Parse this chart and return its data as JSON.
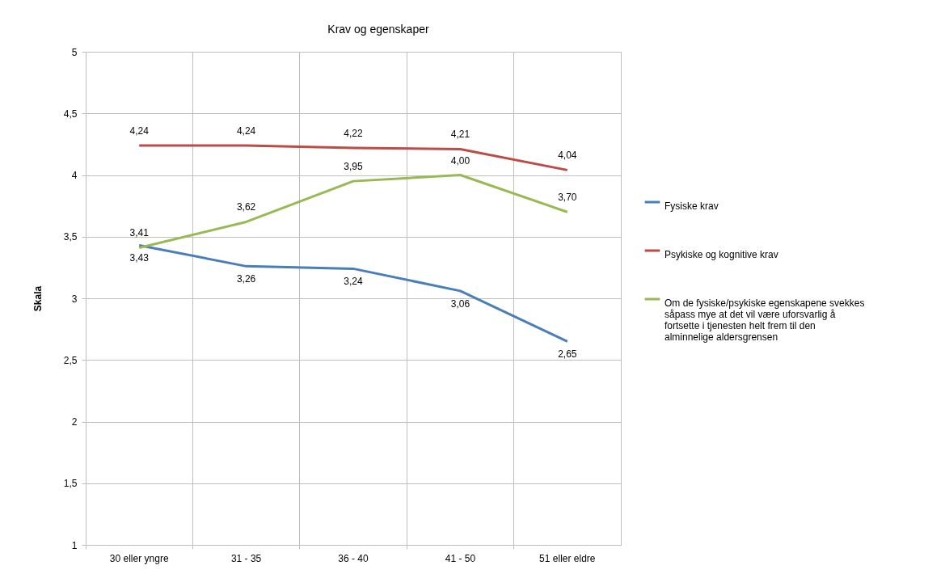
{
  "chart_data": {
    "type": "line",
    "title": "Krav og egenskaper",
    "ylabel": "Skala",
    "categories": [
      "30 eller yngre",
      "31 - 35",
      "36 - 40",
      "41 - 50",
      "51 eller eldre"
    ],
    "series": [
      {
        "name": "Fysiske krav",
        "color": "#4a7ebb",
        "values": [
          3.43,
          3.26,
          3.24,
          3.06,
          2.65
        ],
        "value_labels": [
          "3,43",
          "3,26",
          "3,24",
          "3,06",
          "2,65"
        ]
      },
      {
        "name": "Psykiske og kognitive krav",
        "color": "#be4b48",
        "values": [
          4.24,
          4.24,
          4.22,
          4.21,
          4.04
        ],
        "value_labels": [
          "4,24",
          "4,24",
          "4,22",
          "4,21",
          "4,04"
        ]
      },
      {
        "name": "Om de fysiske/psykiske egenskapene svekkes såpass mye at det vil være uforsvarlig å fortsette i tjenesten helt frem til den alminnelige aldersgrensen",
        "color": "#98b954",
        "values": [
          3.41,
          3.62,
          3.95,
          4.0,
          3.7
        ],
        "value_labels": [
          "3,41",
          "3,62",
          "3,95",
          "4,00",
          "3,70"
        ]
      }
    ],
    "ylim": [
      1,
      5
    ],
    "yticks": [
      1,
      {
        "value": 1.5,
        "label": "1,5"
      },
      2,
      {
        "value": 2.5,
        "label": "2,5"
      },
      3,
      {
        "value": 3.5,
        "label": "3,5"
      },
      4,
      {
        "value": 4.5,
        "label": "4,5"
      },
      5
    ],
    "grid": true,
    "legend": "right",
    "marker": "none",
    "line_style": "solid"
  }
}
